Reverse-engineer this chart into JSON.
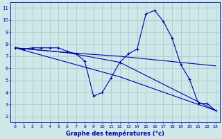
{
  "xlabel": "Graphe des températures (°c)",
  "xlim": [
    -0.5,
    23.5
  ],
  "ylim": [
    1.5,
    11.5
  ],
  "yticks": [
    2,
    3,
    4,
    5,
    6,
    7,
    8,
    9,
    10,
    11
  ],
  "xticks": [
    0,
    1,
    2,
    3,
    4,
    5,
    6,
    7,
    8,
    9,
    10,
    11,
    12,
    13,
    14,
    15,
    16,
    17,
    18,
    19,
    20,
    21,
    22,
    23
  ],
  "background_color": "#cce8e8",
  "grid_color": "#aacccc",
  "line_color": "#0000aa",
  "series": [
    {
      "x": [
        0,
        1,
        2,
        3,
        4,
        5,
        6,
        7,
        8,
        9,
        10,
        11,
        12,
        13,
        14,
        15,
        16,
        17,
        18,
        19,
        20,
        21,
        22,
        23
      ],
      "y": [
        7.7,
        7.6,
        7.7,
        7.7,
        7.7,
        7.7,
        7.4,
        7.2,
        6.6,
        3.7,
        4.0,
        5.2,
        6.5,
        7.2,
        7.6,
        10.5,
        10.8,
        9.9,
        8.5,
        6.3,
        5.1,
        3.1,
        3.1,
        2.5
      ],
      "marker": true
    },
    {
      "x": [
        0,
        6,
        12,
        23
      ],
      "y": [
        7.7,
        7.3,
        7.0,
        6.2
      ],
      "marker": false
    },
    {
      "x": [
        0,
        6,
        12,
        23
      ],
      "y": [
        7.7,
        7.3,
        6.5,
        2.5
      ],
      "marker": false
    },
    {
      "x": [
        0,
        6,
        12,
        23
      ],
      "y": [
        7.7,
        6.5,
        5.3,
        2.5
      ],
      "marker": false
    }
  ]
}
